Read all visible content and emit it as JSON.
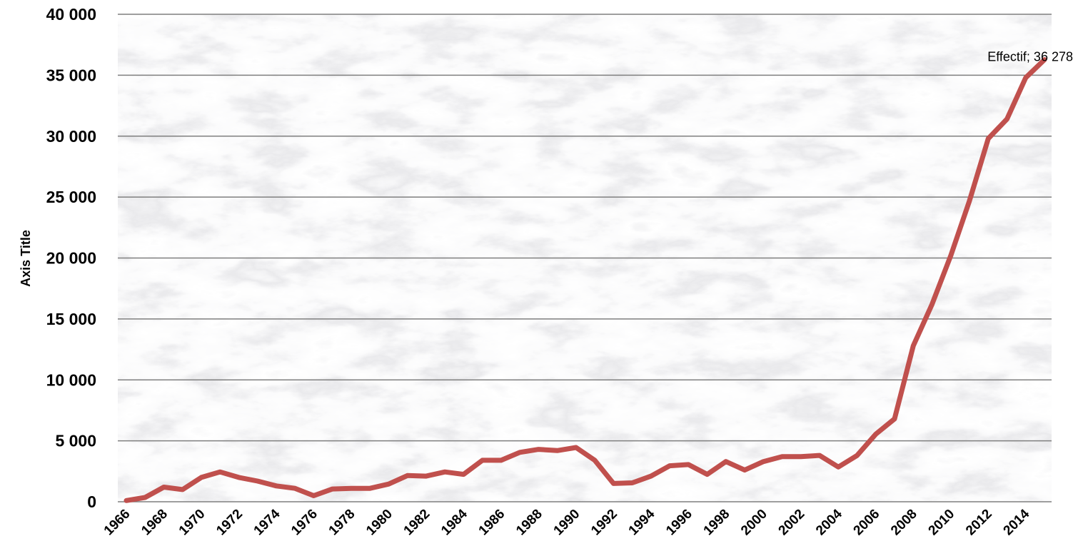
{
  "chart_data": {
    "type": "line",
    "title": "",
    "xlabel": "",
    "ylabel": "Axis Title",
    "xlim": [
      1966,
      2015
    ],
    "ylim": [
      0,
      40000
    ],
    "y_ticks": [
      0,
      5000,
      10000,
      15000,
      20000,
      25000,
      30000,
      35000,
      40000
    ],
    "y_tick_labels": [
      "0",
      "5 000",
      "10 000",
      "15 000",
      "20 000",
      "25 000",
      "30 000",
      "35 000",
      "40 000"
    ],
    "x_tick_labels": [
      "1966",
      "1968",
      "1970",
      "1972",
      "1974",
      "1976",
      "1978",
      "1980",
      "1982",
      "1984",
      "1986",
      "1988",
      "1990",
      "1992",
      "1994",
      "1996",
      "1998",
      "2000",
      "2002",
      "2004",
      "2006",
      "2008",
      "2010",
      "2012",
      "2014"
    ],
    "grid": "horizontal",
    "legend": "none",
    "line_color": "#C0504D",
    "series": [
      {
        "x": [
          1966,
          1967,
          1968,
          1969,
          1970,
          1971,
          1972,
          1973,
          1974,
          1975,
          1976,
          1977,
          1978,
          1979,
          1980,
          1981,
          1982,
          1983,
          1984,
          1985,
          1986,
          1987,
          1988,
          1989,
          1990,
          1991,
          1992,
          1993,
          1994,
          1995,
          1996,
          1997,
          1998,
          1999,
          2000,
          2001,
          2002,
          2003,
          2004,
          2005,
          2006,
          2007,
          2008,
          2009,
          2010,
          2011,
          2012,
          2013,
          2014,
          2015
        ],
        "values": [
          100,
          350,
          1200,
          1000,
          2000,
          2450,
          2000,
          1700,
          1300,
          1100,
          500,
          1050,
          1100,
          1100,
          1450,
          2150,
          2100,
          2450,
          2250,
          3400,
          3400,
          4050,
          4300,
          4200,
          4450,
          3400,
          1500,
          1550,
          2100,
          2950,
          3050,
          2250,
          3300,
          2600,
          3300,
          3700,
          3700,
          3800,
          2850,
          3800,
          5550,
          6800,
          12800,
          16200,
          20200,
          24700,
          29800,
          31400,
          34800,
          36278
        ]
      }
    ],
    "annotations": [
      {
        "text": "Effectif; 36 278",
        "x": 2015,
        "y": 36278
      }
    ]
  }
}
